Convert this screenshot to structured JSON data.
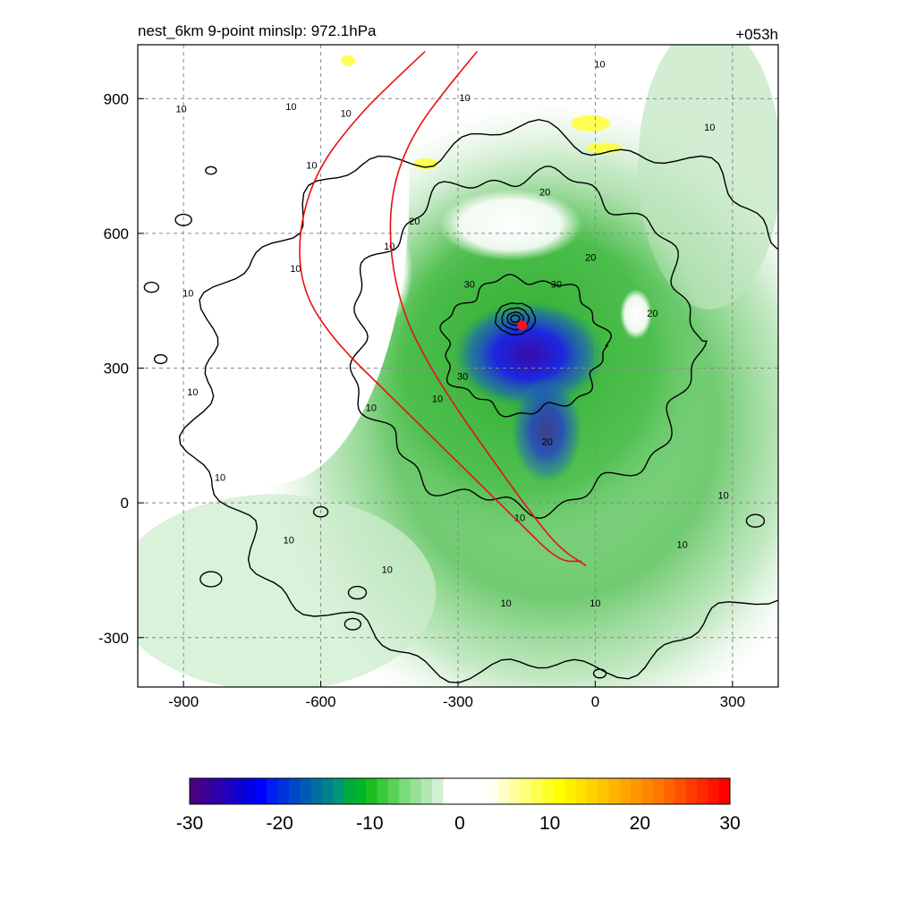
{
  "chart_data": {
    "type": "heatmap",
    "title_left": "nest_6km  9-point minslp: 972.1hPa",
    "title_right": "+053h",
    "xlabel": "",
    "ylabel": "",
    "xlim": [
      -1000,
      400
    ],
    "ylim": [
      -410,
      1020
    ],
    "x_ticks": [
      -900,
      -600,
      -300,
      0,
      300
    ],
    "y_ticks": [
      -300,
      0,
      300,
      600,
      900
    ],
    "grid": true,
    "field": {
      "center": [
        -165,
        400
      ],
      "colors": {
        "strong_negative": "#3010c0",
        "moderate_negative": "#1020ff",
        "weak_negative": "#10b020",
        "near_zero": "#ffffff",
        "positive": "#ffff40"
      },
      "description_values": {
        "core_min": -28,
        "band_min": -12,
        "outer_min": -5,
        "yellow_patch_max": 8
      }
    },
    "contours": {
      "color": "#000000",
      "labels": [
        {
          "text": "10",
          "x": -905,
          "y": 875
        },
        {
          "text": "10",
          "x": -665,
          "y": 880
        },
        {
          "text": "10",
          "x": -545,
          "y": 865
        },
        {
          "text": "10",
          "x": -620,
          "y": 750
        },
        {
          "text": "10",
          "x": -285,
          "y": 900
        },
        {
          "text": "10",
          "x": 10,
          "y": 975
        },
        {
          "text": "10",
          "x": 250,
          "y": 835
        },
        {
          "text": "10",
          "x": -890,
          "y": 465
        },
        {
          "text": "10",
          "x": -880,
          "y": 245
        },
        {
          "text": "10",
          "x": -820,
          "y": 55
        },
        {
          "text": "10",
          "x": -670,
          "y": -85
        },
        {
          "text": "10",
          "x": -455,
          "y": -150
        },
        {
          "text": "10",
          "x": -195,
          "y": -225
        },
        {
          "text": "10",
          "x": 0,
          "y": -225
        },
        {
          "text": "10",
          "x": 190,
          "y": -95
        },
        {
          "text": "10",
          "x": 280,
          "y": 15
        },
        {
          "text": "10",
          "x": -655,
          "y": 520
        },
        {
          "text": "10",
          "x": -450,
          "y": 570
        },
        {
          "text": "10",
          "x": -345,
          "y": 230
        },
        {
          "text": "10",
          "x": -165,
          "y": -35
        },
        {
          "text": "20",
          "x": -110,
          "y": 690
        },
        {
          "text": "20",
          "x": -395,
          "y": 625
        },
        {
          "text": "20",
          "x": -10,
          "y": 545
        },
        {
          "text": "20",
          "x": 125,
          "y": 420
        },
        {
          "text": "20",
          "x": -105,
          "y": 135
        },
        {
          "text": "30",
          "x": -275,
          "y": 485
        },
        {
          "text": "30",
          "x": -85,
          "y": 485
        },
        {
          "text": "30",
          "x": -290,
          "y": 280
        }
      ]
    },
    "red_lines": [
      {
        "name": "10",
        "x": [
          -372,
          -430,
          -520,
          -610,
          -650,
          -640,
          -570,
          -460,
          -360,
          -260,
          -160,
          -80,
          -30
        ],
        "y": [
          1005,
          950,
          860,
          740,
          600,
          470,
          360,
          250,
          150,
          50,
          -50,
          -130,
          -130
        ]
      },
      {
        "name": "",
        "x": [
          -258,
          -320,
          -400,
          -445,
          -450,
          -420,
          -360,
          -290,
          -220,
          -150,
          -80,
          -20
        ],
        "y": [
          1005,
          930,
          820,
          700,
          560,
          420,
          300,
          190,
          90,
          -10,
          -100,
          -140
        ]
      }
    ],
    "red_line_labels": [
      {
        "text": "10",
        "x": -490,
        "y": 210
      }
    ],
    "center_marker": {
      "x": -160,
      "y": 395,
      "color": "#ff1010"
    },
    "colorbar": {
      "min": -30,
      "max": 30,
      "tick_labels": [
        "-30",
        "-20",
        "-10",
        "0",
        "10",
        "20",
        "30"
      ],
      "colors": [
        "#4b0082",
        "#3c0096",
        "#2d00aa",
        "#1e00be",
        "#0f00d2",
        "#0000e6",
        "#0000ff",
        "#001ef0",
        "#0032dc",
        "#0046c8",
        "#005ab4",
        "#006ea0",
        "#00828c",
        "#009678",
        "#00aa3c",
        "#00b428",
        "#1ebe1e",
        "#3cc83c",
        "#5ad25a",
        "#78dc78",
        "#96e196",
        "#b4e6b4",
        "#d2f0d2",
        "#ffffff",
        "#ffffff",
        "#ffffff",
        "#ffffff",
        "#fffff0",
        "#ffffc8",
        "#ffffa0",
        "#ffff78",
        "#ffff50",
        "#ffff28",
        "#ffff00",
        "#fff000",
        "#ffe100",
        "#ffd200",
        "#ffc300",
        "#ffb400",
        "#ffa500",
        "#ff9600",
        "#ff8700",
        "#ff7800",
        "#ff6400",
        "#ff5000",
        "#ff3c00",
        "#ff2800",
        "#ff1400",
        "#ff0000"
      ]
    }
  }
}
